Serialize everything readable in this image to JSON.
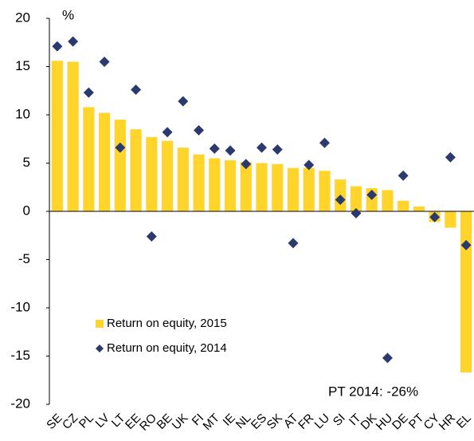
{
  "chart_data": {
    "type": "bar",
    "unit_label": "%",
    "annotation": "PT 2014: -26%",
    "categories": [
      "SE",
      "CZ",
      "PL",
      "LV",
      "LT",
      "EE",
      "RO",
      "BE",
      "UK",
      "FI",
      "MT",
      "IE",
      "NL",
      "ES",
      "SK",
      "AT",
      "FR",
      "LU",
      "SI",
      "IT",
      "DK",
      "HU",
      "DE",
      "PT",
      "CY",
      "HR",
      "EL"
    ],
    "series": [
      {
        "name": "Return on equity, 2015",
        "type": "bar",
        "color": "#ffd52c",
        "values": [
          15.6,
          15.5,
          10.8,
          10.2,
          9.5,
          8.5,
          7.7,
          7.3,
          6.6,
          5.9,
          5.5,
          5.3,
          5.1,
          5.0,
          4.9,
          4.5,
          4.5,
          4.2,
          3.3,
          2.6,
          2.4,
          2.2,
          1.1,
          0.5,
          -1.1,
          -1.7,
          -16.7
        ]
      },
      {
        "name": "Return on equity, 2014",
        "type": "scatter",
        "color": "#2b3a6e",
        "values": [
          17.1,
          17.6,
          12.3,
          15.5,
          6.6,
          12.6,
          -2.6,
          8.2,
          11.4,
          8.4,
          6.5,
          6.3,
          4.9,
          6.6,
          6.4,
          -3.3,
          4.8,
          7.1,
          1.2,
          -0.2,
          1.7,
          -15.2,
          3.7,
          null,
          -0.6,
          5.6,
          -3.5
        ]
      }
    ],
    "ylim": [
      -20,
      20
    ],
    "yticks": [
      -20,
      -15,
      -10,
      -5,
      0,
      5,
      10,
      15,
      20
    ],
    "legend": "lower left"
  }
}
